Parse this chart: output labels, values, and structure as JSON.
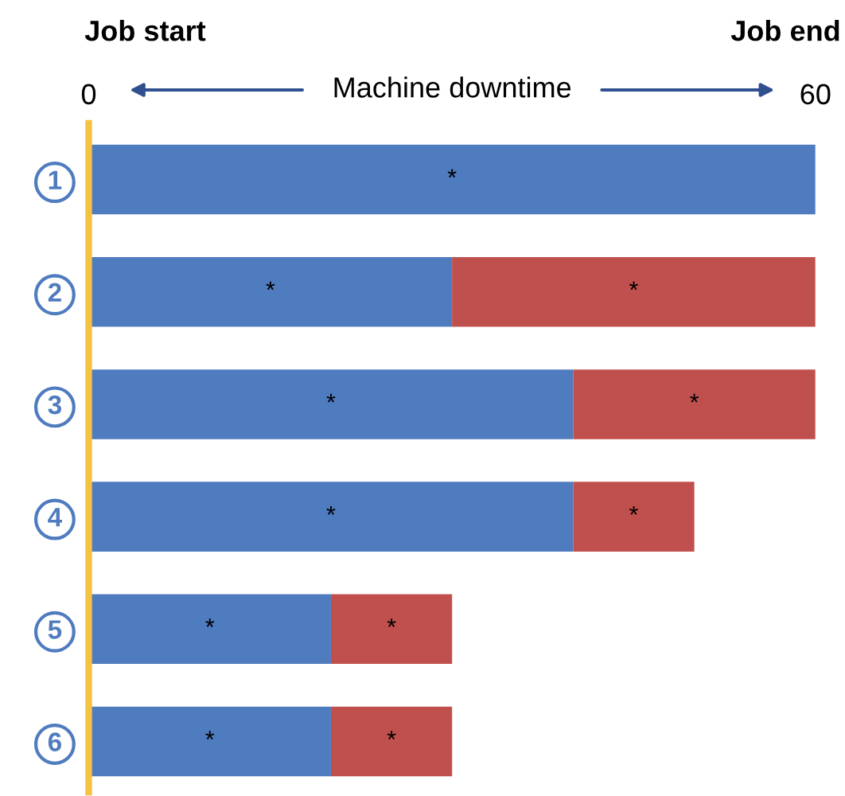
{
  "chart_data": {
    "type": "bar",
    "orientation": "horizontal",
    "stacked": true,
    "categories": [
      "1",
      "2",
      "3",
      "4",
      "5",
      "6"
    ],
    "series": [
      {
        "color": "#4f7bbf",
        "values": [
          60,
          30,
          40,
          40,
          20,
          20
        ],
        "value_labels": [
          "*",
          "*",
          "*",
          "*",
          "*",
          "*"
        ]
      },
      {
        "color": "#c0504d",
        "values": [
          null,
          30,
          20,
          10,
          10,
          10
        ],
        "value_labels": [
          null,
          "*",
          "*",
          "*",
          "*",
          "*"
        ]
      }
    ],
    "xlim": [
      0,
      60
    ],
    "xticks": [
      0,
      60
    ],
    "xlabel": "Machine downtime",
    "annotations": [
      "Job start",
      "Job end"
    ],
    "grid": false,
    "legend": false
  }
}
